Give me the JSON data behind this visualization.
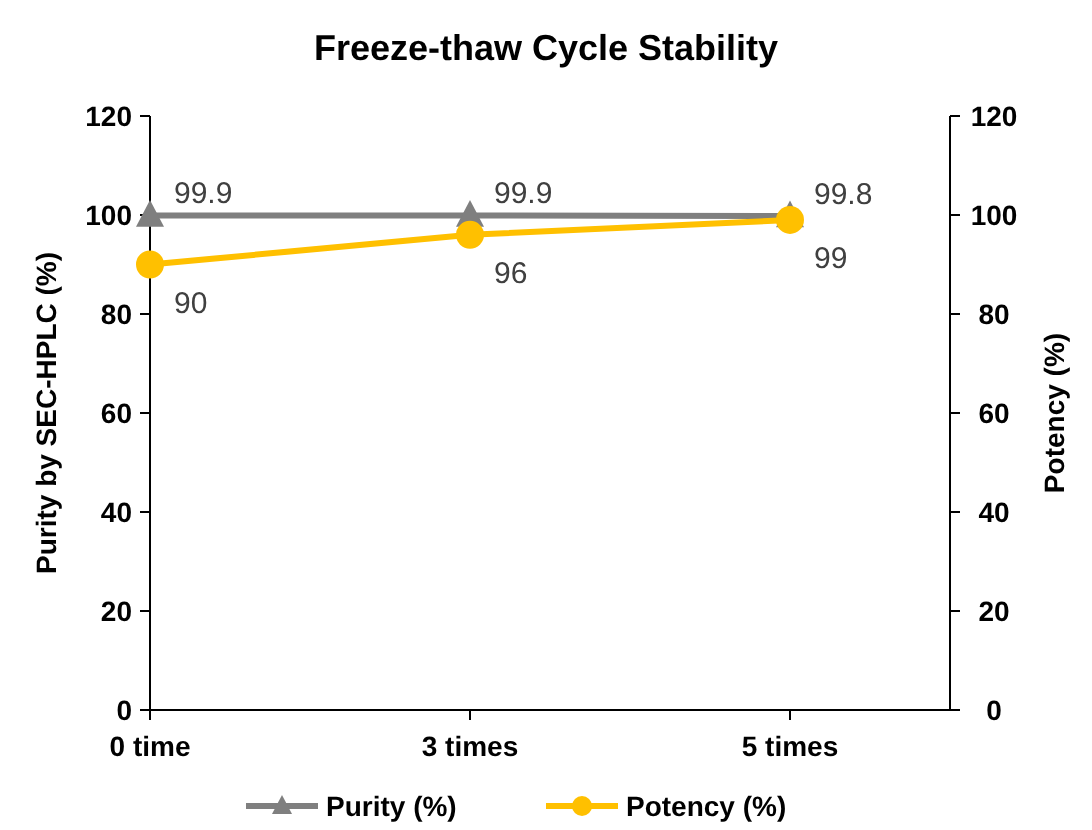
{
  "chart_data": {
    "type": "line",
    "title": "Freeze-thaw Cycle Stability",
    "categories": [
      "0 time",
      "3 times",
      "5 times"
    ],
    "ylabel": "Purity by SEC-HPLC (%)",
    "y2label": "Potency (%)",
    "ylim": [
      0,
      120
    ],
    "yticks": [
      0,
      20,
      40,
      60,
      80,
      100,
      120
    ],
    "y2lim": [
      0,
      120
    ],
    "y2ticks": [
      0,
      20,
      40,
      60,
      80,
      100,
      120
    ],
    "series": [
      {
        "name": "Purity (%)",
        "color": "#7f7f7f",
        "values": [
          99.9,
          99.9,
          99.8
        ],
        "marker": "triangle"
      },
      {
        "name": "Potency (%)",
        "color": "#ffc000",
        "values": [
          90,
          96,
          99
        ],
        "marker": "circle",
        "axis": "y2"
      }
    ],
    "data_labels": true,
    "grid": false,
    "legend": "bottom"
  }
}
